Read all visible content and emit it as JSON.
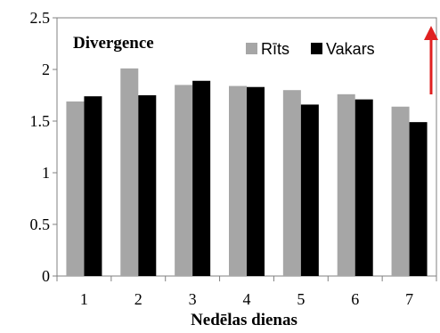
{
  "chart_data": {
    "type": "bar",
    "title": "Divergence",
    "xlabel": "Nedēlas dienas",
    "ylabel": "",
    "categories": [
      "1",
      "2",
      "3",
      "4",
      "5",
      "6",
      "7"
    ],
    "ylim": [
      0,
      2.5
    ],
    "yticks": [
      "0",
      "0.5",
      "1",
      "1.5",
      "2",
      "2.5"
    ],
    "legend_position": "top-right",
    "grid": false,
    "series": [
      {
        "name": "Rīts",
        "color": "#a6a6a6",
        "values": [
          1.69,
          2.01,
          1.85,
          1.84,
          1.8,
          1.76,
          1.64
        ]
      },
      {
        "name": "Vakars",
        "color": "#000000",
        "values": [
          1.74,
          1.75,
          1.89,
          1.83,
          1.66,
          1.71,
          1.49
        ]
      }
    ],
    "annotation": {
      "type": "arrow",
      "direction": "up",
      "color": "#e02020"
    }
  }
}
